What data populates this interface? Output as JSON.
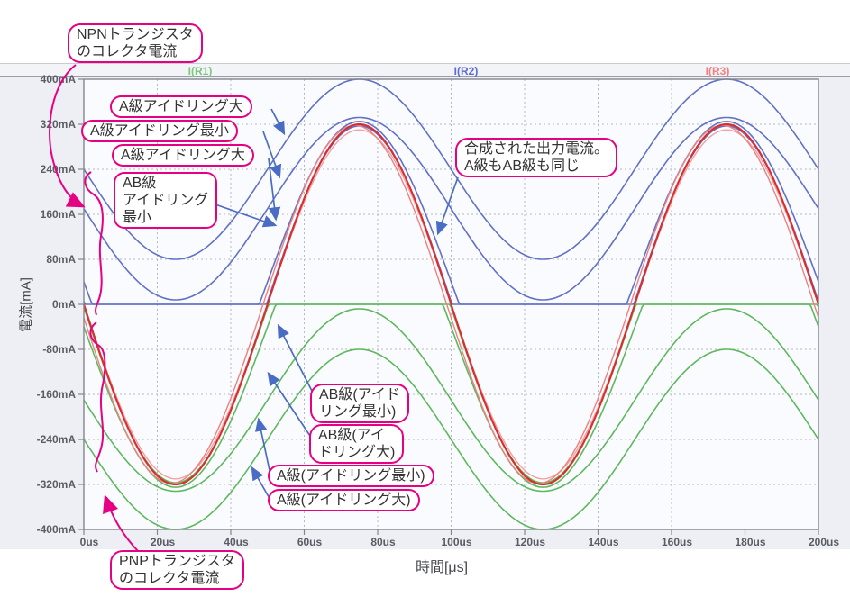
{
  "figure": {
    "y_axis_title": "電流[mA]",
    "x_axis_title": "時間[μs]",
    "legend": [
      {
        "label": "I(R1)",
        "color": "#7cc87c"
      },
      {
        "label": "I(R2)",
        "color": "#5b6bd5"
      },
      {
        "label": "I(R3)",
        "color": "#f57e7e"
      }
    ]
  },
  "colors": {
    "callout_border": "#e60082",
    "annotation_arrow": "#4a6cc4",
    "grid": "#b8bac0",
    "plot_border": "#84868e",
    "tick_text": "#5a5c64",
    "npn_curves": "#6271c5",
    "pnp_curves": "#5eb85e",
    "output_curve": "#d92e2e"
  },
  "callouts": {
    "npn": {
      "lines": [
        "NPNトランジスタ",
        "のコレクタ電流"
      ]
    },
    "a_idling_large_1": {
      "lines": [
        "A級アイドリング大"
      ]
    },
    "a_idling_min": {
      "lines": [
        "A級アイドリング最小"
      ]
    },
    "a_idling_large_2": {
      "lines": [
        "A級アイドリング大"
      ]
    },
    "ab_idling_min": {
      "lines": [
        "AB級",
        "アイドリング",
        "最小"
      ]
    },
    "combined_output": {
      "lines": [
        "合成された出力電流。",
        "A級もAB級も同じ"
      ]
    },
    "ab_paren_min": {
      "lines": [
        "AB級(アイド",
        "リング最小)"
      ]
    },
    "ab_paren_large": {
      "lines": [
        "AB級(アイ",
        "ドリング大)"
      ]
    },
    "a_paren_min": {
      "lines": [
        "A級(アイドリング最小)"
      ]
    },
    "a_paren_large": {
      "lines": [
        "A級(アイドリング大)"
      ]
    },
    "pnp": {
      "lines": [
        "PNPトランジスタ",
        "のコレクタ電流"
      ]
    }
  },
  "chart_data": {
    "type": "line",
    "title": "",
    "xlabel": "時間[μs]",
    "ylabel": "電流[mA]",
    "xlim_us": [
      0,
      200
    ],
    "ylim_mA": [
      -400,
      400
    ],
    "grid": true,
    "legend_position": "top",
    "x_ticks": [
      "0us",
      "20us",
      "40us",
      "60us",
      "80us",
      "100us",
      "120us",
      "140us",
      "160us",
      "180us",
      "200us"
    ],
    "x_tick_values": [
      0,
      20,
      40,
      60,
      80,
      100,
      120,
      140,
      160,
      180,
      200
    ],
    "y_ticks": [
      "400mA",
      "320mA",
      "240mA",
      "160mA",
      "80mA",
      "0mA",
      "-80mA",
      "-160mA",
      "-240mA",
      "-320mA",
      "-400mA"
    ],
    "y_tick_values": [
      400,
      320,
      240,
      160,
      80,
      0,
      -80,
      -160,
      -240,
      -320,
      -400
    ],
    "period_us": 100,
    "model": "value_mA(t) = offset_mA - amplitude_mA * sin(2*pi*(t+phase_us)/period_us), then clipped",
    "series": [
      {
        "id": "pnp-a-large",
        "name": "PNPコレクタ電流 A級(アイドリング大)",
        "legend": "I(R1)",
        "color": "#5eb85e",
        "width": 1.6,
        "offset_mA": -240,
        "amplitude_mA": 160,
        "clip": "none",
        "range_mA": [
          -400,
          -80
        ]
      },
      {
        "id": "pnp-a-min",
        "name": "PNPコレクタ電流 A級(アイドリング最小)",
        "legend": "I(R1)",
        "color": "#5eb85e",
        "width": 1.6,
        "offset_mA": -170,
        "amplitude_mA": 162,
        "clip": "none",
        "range_mA": [
          -332,
          -8
        ]
      },
      {
        "id": "pnp-ab-large",
        "name": "PNPコレクタ電流 AB級(アイドリング大)",
        "legend": "I(R1)",
        "color": "#5eb85e",
        "width": 1.6,
        "offset_mA": -40,
        "amplitude_mA": 285,
        "clip": "max0",
        "range_mA": [
          -325,
          0
        ]
      },
      {
        "id": "pnp-ab-min",
        "name": "PNPコレクタ電流 AB級(アイドリング最小)",
        "legend": "I(R1)",
        "color": "#5eb85e",
        "width": 1.6,
        "offset_mA": -5,
        "amplitude_mA": 312,
        "clip": "max0",
        "range_mA": [
          -317,
          0
        ]
      },
      {
        "id": "npn-a-large",
        "name": "NPNコレクタ電流 A級アイドリング大",
        "legend": "I(R2)",
        "color": "#6271c5",
        "width": 1.6,
        "offset_mA": 240,
        "amplitude_mA": 160,
        "clip": "none",
        "range_mA": [
          80,
          400
        ]
      },
      {
        "id": "npn-a-min",
        "name": "NPNコレクタ電流 A級アイドリング最小",
        "legend": "I(R2)",
        "color": "#6271c5",
        "width": 1.6,
        "offset_mA": 170,
        "amplitude_mA": 162,
        "clip": "none",
        "range_mA": [
          8,
          332
        ]
      },
      {
        "id": "npn-ab-large",
        "name": "NPNコレクタ電流 AB級アイドリング大",
        "legend": "I(R2)",
        "color": "#6271c5",
        "width": 1.6,
        "offset_mA": 40,
        "amplitude_mA": 285,
        "clip": "min0",
        "range_mA": [
          0,
          325
        ]
      },
      {
        "id": "npn-ab-min",
        "name": "NPNコレクタ電流 AB級アイドリング最小",
        "legend": "I(R2)",
        "color": "#6271c5",
        "width": 1.6,
        "offset_mA": 5,
        "amplitude_mA": 312,
        "clip": "min0",
        "range_mA": [
          0,
          317
        ]
      },
      {
        "id": "output-trace-a",
        "name": "合成出力電流(重なりトレース)",
        "legend": "I(R3)",
        "color": "#f2a0a0",
        "width": 1.4,
        "offset_mA": 0,
        "amplitude_mA": 310,
        "clip": "none",
        "range_mA": [
          -310,
          310
        ]
      },
      {
        "id": "output-trace-b",
        "name": "合成出力電流(重なりトレース)",
        "legend": "I(R3)",
        "color": "#ee8080",
        "width": 1.4,
        "offset_mA": 0,
        "amplitude_mA": 318,
        "clip": "none",
        "phase_us": 1.2,
        "range_mA": [
          -318,
          318
        ]
      },
      {
        "id": "output-main",
        "name": "合成された出力電流(A級もAB級も同じ)",
        "legend": "I(R3)",
        "color": "#d92e2e",
        "width": 2.1,
        "offset_mA": 0,
        "amplitude_mA": 320,
        "clip": "none",
        "range_mA": [
          -320,
          320
        ]
      }
    ]
  }
}
